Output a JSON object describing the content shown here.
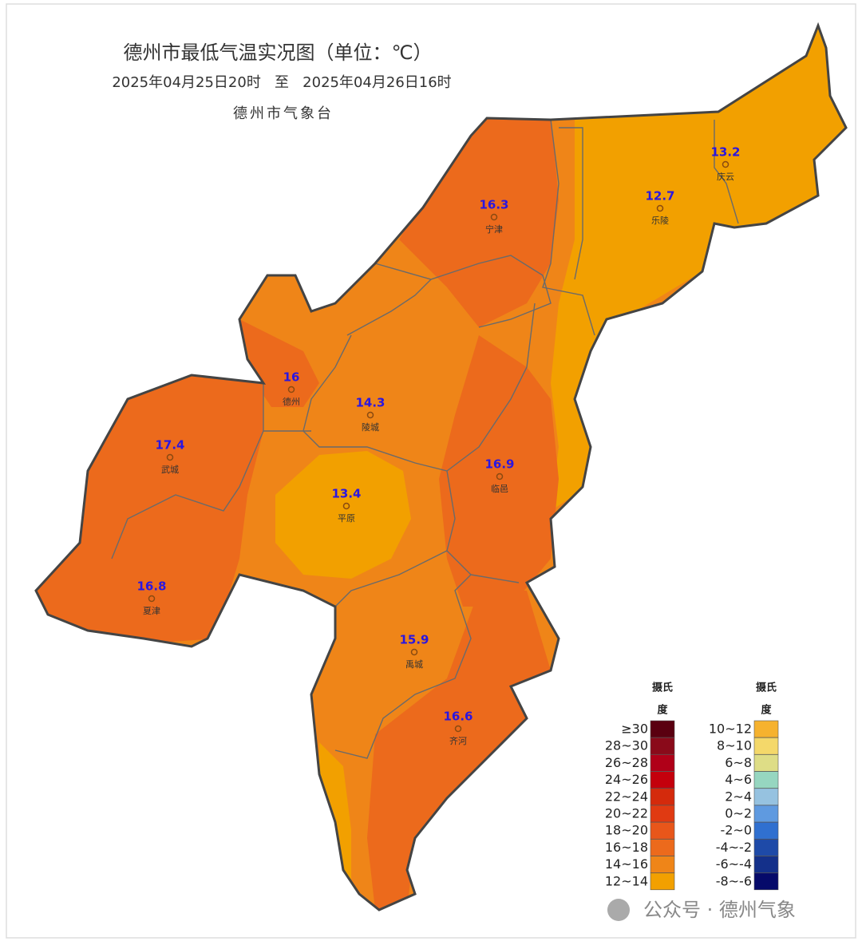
{
  "header": {
    "title": "德州市最低气温实况图（单位：℃）",
    "subtitle": "2025年04月25日20时   至   2025年04月26日16时",
    "source": "德州市气象台"
  },
  "stations": [
    {
      "name": "宁津",
      "value": 16.3
    },
    {
      "name": "庆云",
      "value": 13.2
    },
    {
      "name": "乐陵",
      "value": 12.7
    },
    {
      "name": "德州",
      "value": 16
    },
    {
      "name": "陵城",
      "value": 14.3
    },
    {
      "name": "武城",
      "value": 17.4
    },
    {
      "name": "临邑",
      "value": 16.9
    },
    {
      "name": "平原",
      "value": 13.4
    },
    {
      "name": "夏津",
      "value": 16.8
    },
    {
      "name": "禹城",
      "value": 15.9
    },
    {
      "name": "齐河",
      "value": 16.6
    }
  ],
  "legend": {
    "columns": [
      {
        "title_lines": [
          "摄氏",
          "度"
        ],
        "items": [
          {
            "label": "≥30",
            "color": "#5a0010"
          },
          {
            "label": "28~30",
            "color": "#8a0a1a"
          },
          {
            "label": "26~28",
            "color": "#b00018"
          },
          {
            "label": "24~26",
            "color": "#c4000c"
          },
          {
            "label": "22~24",
            "color": "#d42a0c"
          },
          {
            "label": "20~22",
            "color": "#e03a12"
          },
          {
            "label": "18~20",
            "color": "#e8561a"
          },
          {
            "label": "16~18",
            "color": "#ec6a1c"
          },
          {
            "label": "14~16",
            "color": "#ef8518"
          },
          {
            "label": "12~14",
            "color": "#f2a000"
          }
        ]
      },
      {
        "title_lines": [
          "摄氏",
          "度"
        ],
        "items": [
          {
            "label": "10~12",
            "color": "#f6b22e"
          },
          {
            "label": "8~10",
            "color": "#f4d86a"
          },
          {
            "label": "6~8",
            "color": "#dedd86"
          },
          {
            "label": "4~6",
            "color": "#96d6c0"
          },
          {
            "label": "2~4",
            "color": "#96c2e0"
          },
          {
            "label": "0~2",
            "color": "#5f9ae0"
          },
          {
            "label": "-2~0",
            "color": "#3070d0"
          },
          {
            "label": "-4~-2",
            "color": "#1e4aa8"
          },
          {
            "label": "-6~-4",
            "color": "#14308a"
          },
          {
            "label": "-8~-6",
            "color": "#060a6a"
          }
        ]
      }
    ]
  },
  "watermark": "公众号 · 德州气象"
}
